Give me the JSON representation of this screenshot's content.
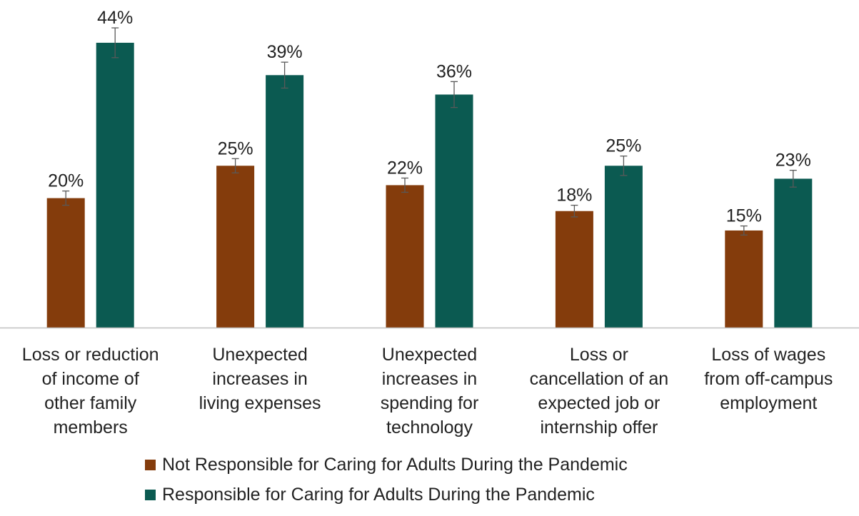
{
  "colors": {
    "series_0": "#843C0C",
    "series_1": "#0B5A51",
    "axis": "#BFBFBF",
    "error_bar": "#595959",
    "text": "#222222"
  },
  "chart_data": {
    "type": "bar",
    "title": "",
    "xlabel": "",
    "ylabel": "",
    "ylim": [
      0,
      50
    ],
    "value_suffix": "%",
    "grid": false,
    "legend_position": "bottom",
    "categories": [
      [
        "Loss or reduction",
        "of income of",
        "other family",
        "members"
      ],
      [
        "Unexpected",
        "increases in",
        "living expenses"
      ],
      [
        "Unexpected",
        "increases in",
        "spending for",
        "technology"
      ],
      [
        "Loss or",
        "cancellation of an",
        "expected job or",
        "internship offer"
      ],
      [
        "Loss of wages",
        "from off-campus",
        "employment"
      ]
    ],
    "series": [
      {
        "name": "Not Responsible for Caring for Adults During the Pandemic",
        "values": [
          20,
          25,
          22,
          18,
          15
        ],
        "labels": [
          "20%",
          "25%",
          "22%",
          "18%",
          "15%"
        ],
        "error": [
          1.1,
          1.1,
          1.1,
          0.9,
          0.7
        ]
      },
      {
        "name": "Responsible for Caring for Adults During the Pandemic",
        "values": [
          44,
          39,
          36,
          25,
          23
        ],
        "labels": [
          "44%",
          "39%",
          "36%",
          "25%",
          "23%"
        ],
        "error": [
          2.3,
          2.0,
          2.0,
          1.5,
          1.3
        ]
      }
    ]
  }
}
